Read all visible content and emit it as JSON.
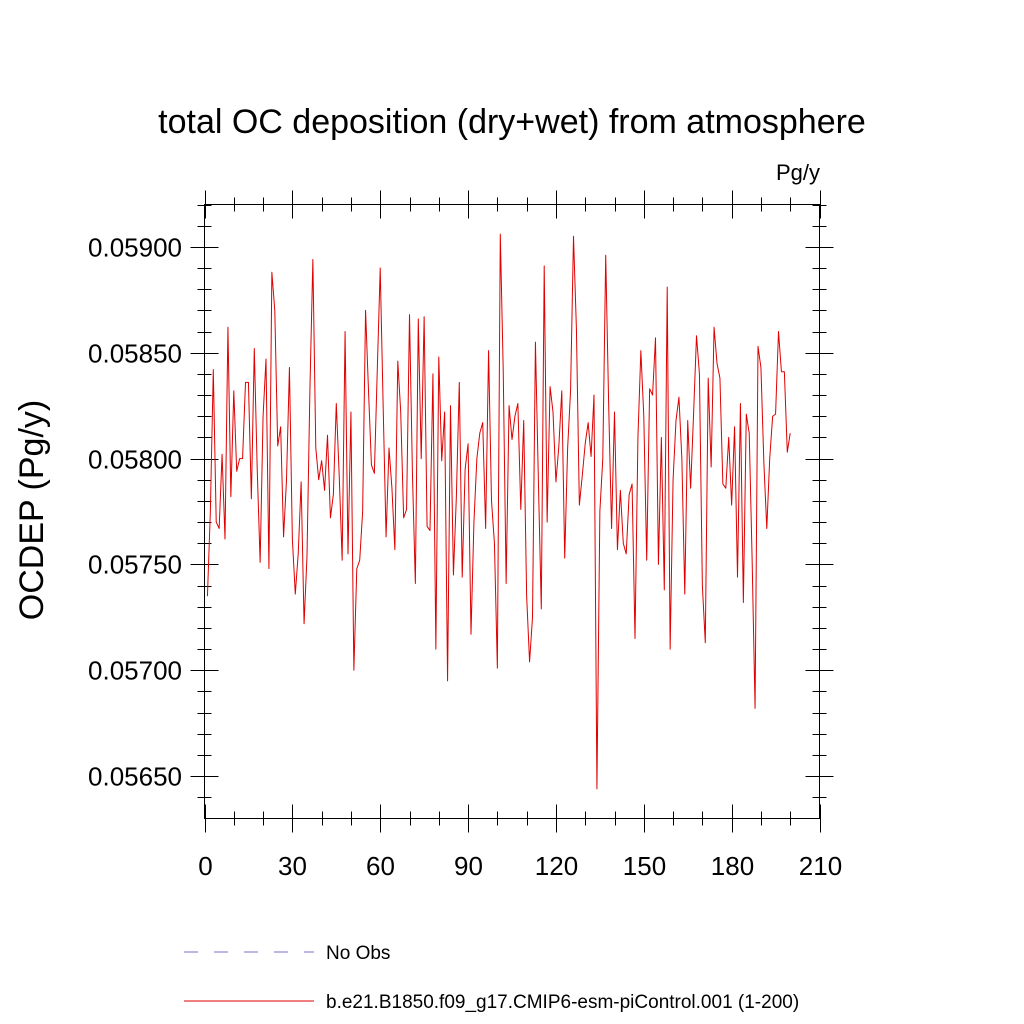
{
  "chart_data": {
    "type": "line",
    "title": "total OC deposition (dry+wet) from atmosphere",
    "units": "Pg/y",
    "xlabel": "",
    "ylabel": "OCDEP  (Pg/y)",
    "xlim": [
      0,
      210
    ],
    "ylim": [
      0.0563,
      0.0592
    ],
    "x_ticks": [
      0,
      30,
      60,
      90,
      120,
      150,
      180,
      210
    ],
    "x_tick_labels": [
      "0",
      "30",
      "60",
      "90",
      "120",
      "150",
      "180",
      "210"
    ],
    "y_ticks": [
      0.0565,
      0.057,
      0.0575,
      0.058,
      0.0585,
      0.059
    ],
    "y_tick_labels": [
      "0.05650",
      "0.05700",
      "0.05750",
      "0.05800",
      "0.05850",
      "0.05900"
    ],
    "grid": false,
    "legend": [
      {
        "label": "No Obs",
        "color": "#7a70c8",
        "style": "dashed"
      },
      {
        "label": "b.e21.B1850.f09_g17.CMIP6-esm-piControl.001 (1-200)",
        "color": "#e00000",
        "style": "solid"
      }
    ],
    "series": [
      {
        "name": "b.e21.B1850.f09_g17.CMIP6-esm-piControl.001 (1-200)",
        "color": "#e00000",
        "x_start": 1,
        "values": [
          0.05735,
          0.05775,
          0.05842,
          0.0577,
          0.05767,
          0.05802,
          0.05762,
          0.05862,
          0.05782,
          0.05832,
          0.05794,
          0.058,
          0.058,
          0.05836,
          0.05836,
          0.05781,
          0.05852,
          0.05795,
          0.05751,
          0.0582,
          0.05847,
          0.05748,
          0.05888,
          0.0587,
          0.05806,
          0.05815,
          0.05763,
          0.0579,
          0.05843,
          0.05762,
          0.05736,
          0.05755,
          0.05789,
          0.05722,
          0.05754,
          0.05833,
          0.05894,
          0.05805,
          0.0579,
          0.05799,
          0.05785,
          0.05811,
          0.05772,
          0.05783,
          0.05826,
          0.05792,
          0.05752,
          0.0586,
          0.05755,
          0.05822,
          0.057,
          0.05748,
          0.05752,
          0.05775,
          0.0587,
          0.05832,
          0.05797,
          0.05793,
          0.05842,
          0.0589,
          0.05825,
          0.05763,
          0.05805,
          0.05786,
          0.05757,
          0.05846,
          0.05822,
          0.05772,
          0.05776,
          0.05868,
          0.05793,
          0.05741,
          0.05866,
          0.058,
          0.05867,
          0.05768,
          0.05766,
          0.0584,
          0.0571,
          0.05848,
          0.05799,
          0.05822,
          0.05695,
          0.05825,
          0.05745,
          0.05782,
          0.05836,
          0.05744,
          0.05795,
          0.05807,
          0.05717,
          0.0577,
          0.058,
          0.05812,
          0.05817,
          0.05767,
          0.05851,
          0.0578,
          0.0576,
          0.05701,
          0.05906,
          0.05842,
          0.05741,
          0.05825,
          0.05809,
          0.0582,
          0.05826,
          0.05776,
          0.05818,
          0.05735,
          0.05704,
          0.05725,
          0.05855,
          0.0579,
          0.05729,
          0.05891,
          0.0577,
          0.05834,
          0.05822,
          0.05789,
          0.05806,
          0.05832,
          0.05753,
          0.05805,
          0.05832,
          0.05905,
          0.05861,
          0.05778,
          0.05792,
          0.05807,
          0.05817,
          0.05801,
          0.0583,
          0.05644,
          0.05775,
          0.058,
          0.05896,
          0.05826,
          0.05767,
          0.05822,
          0.05757,
          0.05785,
          0.0576,
          0.05755,
          0.05783,
          0.05788,
          0.05715,
          0.0581,
          0.05851,
          0.0582,
          0.05752,
          0.05833,
          0.0583,
          0.05857,
          0.0575,
          0.0581,
          0.05738,
          0.05881,
          0.0571,
          0.0579,
          0.05818,
          0.05829,
          0.058,
          0.05736,
          0.05818,
          0.05786,
          0.05821,
          0.05858,
          0.0584,
          0.0574,
          0.05713,
          0.05838,
          0.05796,
          0.05862,
          0.05845,
          0.05838,
          0.05788,
          0.05786,
          0.0581,
          0.05778,
          0.05815,
          0.05744,
          0.05826,
          0.05732,
          0.05821,
          0.05812,
          0.05752,
          0.05682,
          0.05853,
          0.05843,
          0.05798,
          0.05767,
          0.058,
          0.0582,
          0.05821,
          0.0586,
          0.05841,
          0.05841,
          0.05803,
          0.05812
        ]
      }
    ]
  }
}
